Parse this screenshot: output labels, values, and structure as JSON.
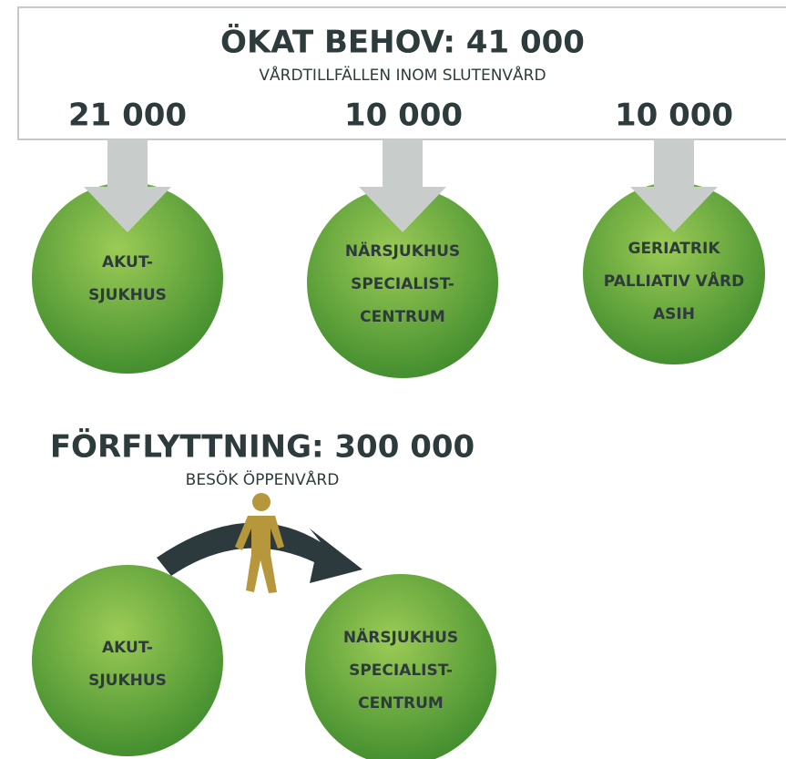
{
  "demand": {
    "title": "ÖKAT BEHOV: 41 000",
    "subtitle": "VÅRDTILLFÄLLEN INOM SLUTENVÅRD",
    "branches": [
      {
        "amount": "21 000",
        "lines": [
          "AKUT-",
          "SJUKHUS"
        ]
      },
      {
        "amount": "10 000",
        "lines": [
          "NÄRSJUKHUS",
          "SPECIALIST-",
          "CENTRUM"
        ]
      },
      {
        "amount": "10 000",
        "lines": [
          "GERIATRIK",
          "PALLIATIV VÅRD",
          "ASIH"
        ]
      }
    ]
  },
  "shift": {
    "title": "FÖRFLYTTNING: 300 000",
    "subtitle": "BESÖK ÖPPENVÅRD",
    "from": [
      "AKUT-",
      "SJUKHUS"
    ],
    "to": [
      "NÄRSJUKHUS",
      "SPECIALIST-",
      "CENTRUM"
    ]
  }
}
